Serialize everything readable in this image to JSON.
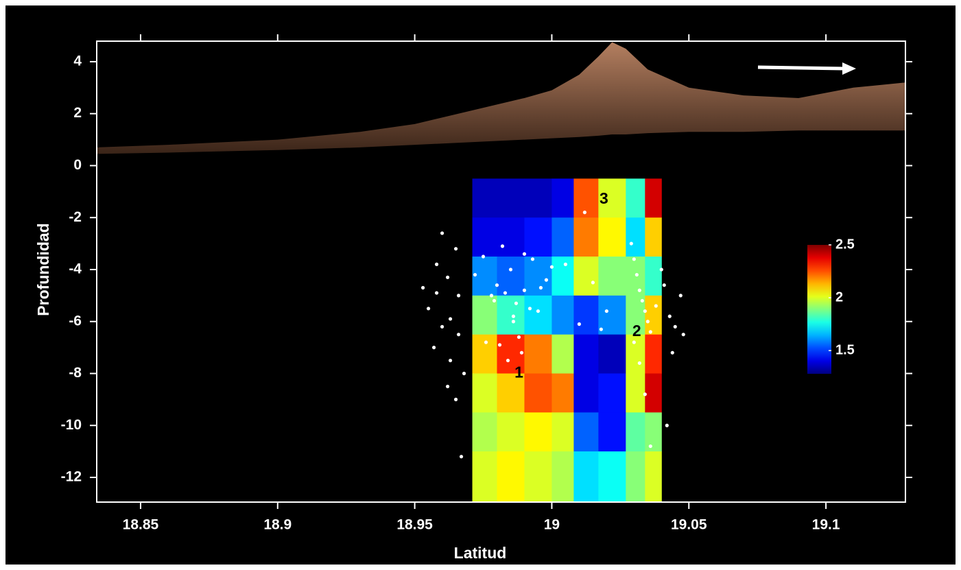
{
  "chart_data": {
    "type": "cross-section",
    "xlabel": "Latitud",
    "ylabel": "Profundidad",
    "xlim": [
      18.834,
      19.129
    ],
    "ylim": [
      -12.95,
      4.79
    ],
    "xticks": [
      18.85,
      18.9,
      18.95,
      19,
      19.05,
      19.1
    ],
    "yticks": [
      4,
      2,
      0,
      -2,
      -4,
      -6,
      -8,
      -10,
      -12
    ],
    "topography": {
      "color": "#b47f60",
      "x": [
        18.834,
        18.86,
        18.9,
        18.93,
        18.95,
        18.97,
        18.99,
        19.0,
        19.01,
        19.017,
        19.022,
        19.027,
        19.035,
        19.05,
        19.07,
        19.09,
        19.11,
        19.129
      ],
      "y": [
        0.7,
        0.8,
        1.0,
        1.3,
        1.6,
        2.1,
        2.6,
        2.9,
        3.5,
        4.2,
        4.75,
        4.5,
        3.7,
        3.0,
        2.7,
        2.6,
        3.0,
        3.2
      ],
      "base": [
        0.45,
        0.5,
        0.6,
        0.7,
        0.8,
        0.9,
        1.0,
        1.05,
        1.1,
        1.15,
        1.2,
        1.2,
        1.25,
        1.3,
        1.3,
        1.35,
        1.35,
        1.35
      ]
    },
    "heatmap": {
      "x_edges": [
        18.971,
        18.98,
        18.99,
        19.0,
        19.008,
        19.017,
        19.027,
        19.034,
        19.04
      ],
      "y_edges": [
        -0.5,
        -2,
        -3.5,
        -5,
        -6.5,
        -8,
        -9.5,
        -11,
        -12.95
      ],
      "values": [
        [
          1.35,
          1.35,
          1.35,
          1.4,
          2.25,
          2.0,
          1.8,
          2.4
        ],
        [
          1.4,
          1.4,
          1.45,
          1.55,
          2.2,
          2.05,
          1.7,
          2.1
        ],
        [
          1.6,
          1.55,
          1.6,
          1.75,
          2.0,
          1.9,
          1.9,
          1.8
        ],
        [
          1.9,
          1.8,
          1.7,
          1.6,
          1.5,
          1.6,
          1.9,
          2.1
        ],
        [
          2.1,
          2.3,
          2.2,
          1.95,
          1.4,
          1.35,
          2.0,
          2.3
        ],
        [
          2.0,
          2.1,
          2.25,
          2.2,
          1.4,
          1.45,
          2.0,
          2.4
        ],
        [
          1.95,
          2.0,
          2.05,
          2.0,
          1.55,
          1.45,
          1.85,
          1.9
        ],
        [
          2.0,
          2.05,
          2.0,
          1.95,
          1.7,
          1.75,
          1.9,
          2.0
        ]
      ],
      "clim": [
        1.28,
        2.5
      ],
      "cticks": [
        2.5,
        2,
        1.5
      ]
    },
    "points": {
      "color": "#ffffff",
      "x": [
        18.953,
        18.955,
        18.958,
        18.96,
        18.962,
        18.963,
        18.965,
        18.966,
        18.967,
        18.968,
        18.96,
        18.957,
        18.962,
        18.965,
        18.958,
        18.966,
        18.963,
        18.972,
        18.975,
        18.978,
        18.98,
        18.982,
        18.985,
        18.987,
        18.99,
        18.993,
        18.995,
        18.998,
        19.0,
        18.976,
        18.979,
        18.983,
        18.986,
        18.989,
        18.992,
        18.996,
        18.984,
        18.988,
        18.99,
        18.986,
        18.981,
        19.012,
        19.015,
        19.02,
        19.005,
        19.018,
        19.01,
        19.029,
        19.03,
        19.031,
        19.032,
        19.033,
        19.034,
        19.035,
        19.036,
        19.03,
        19.032,
        19.034,
        19.038,
        19.041,
        19.043,
        19.045,
        19.047,
        19.044,
        19.042,
        19.048,
        19.036,
        19.04
      ],
      "y": [
        -4.7,
        -5.5,
        -3.8,
        -6.2,
        -4.3,
        -7.5,
        -9.0,
        -5.0,
        -11.2,
        -8.0,
        -2.6,
        -7.0,
        -8.5,
        -3.2,
        -4.9,
        -6.5,
        -5.9,
        -4.2,
        -3.5,
        -5.0,
        -4.6,
        -3.1,
        -4.0,
        -5.3,
        -4.8,
        -3.6,
        -5.6,
        -4.4,
        -3.9,
        -6.8,
        -5.2,
        -4.9,
        -6.0,
        -7.2,
        -5.5,
        -4.7,
        -7.5,
        -6.6,
        -3.4,
        -5.8,
        -6.9,
        -1.8,
        -4.5,
        -5.6,
        -3.8,
        -6.3,
        -6.1,
        -3.0,
        -3.6,
        -4.2,
        -4.8,
        -5.2,
        -5.6,
        -6.0,
        -6.4,
        -6.8,
        -7.6,
        -8.8,
        -5.4,
        -4.6,
        -5.8,
        -6.2,
        -5.0,
        -7.2,
        -10.0,
        -6.5,
        -10.8,
        -4.0
      ]
    },
    "annotations": [
      {
        "text": "1",
        "x": 18.988,
        "y": -8.0
      },
      {
        "text": "2",
        "x": 19.031,
        "y": -6.4
      },
      {
        "text": "3",
        "x": 19.019,
        "y": -1.3
      }
    ]
  }
}
